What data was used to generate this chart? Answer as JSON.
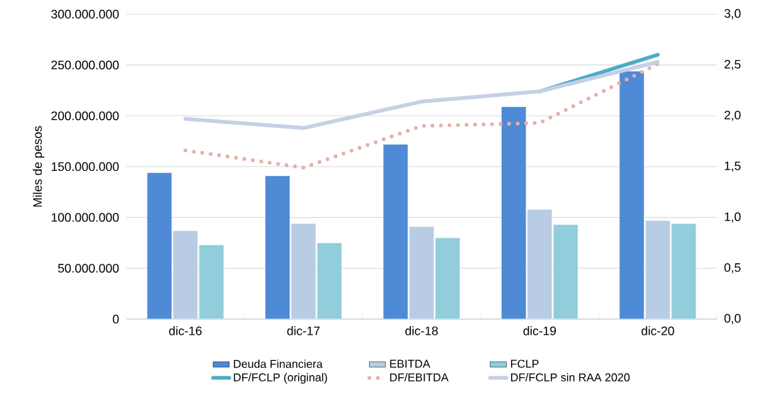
{
  "chart_data": {
    "type": "bar",
    "ylabel": "Miles de pesos",
    "categories": [
      "dic-16",
      "dic-17",
      "dic-18",
      "dic-19",
      "dic-20"
    ],
    "series": [
      {
        "name": "Deuda Financiera",
        "color": "#4e8ad6",
        "values": [
          144000000,
          141000000,
          172000000,
          209000000,
          244000000
        ]
      },
      {
        "name": "EBITDA",
        "color": "#b8cce4",
        "values": [
          87000000,
          94000000,
          91000000,
          108000000,
          97000000
        ]
      },
      {
        "name": "FCLP",
        "color": "#92cddc",
        "values": [
          73000000,
          75000000,
          80000000,
          93000000,
          94000000
        ]
      },
      {
        "name": "DF/FCLP (original)",
        "type": "line",
        "axis": "y2",
        "color": "#4bacc6",
        "line_style": "solid",
        "values": [
          null,
          null,
          null,
          2.24,
          2.6
        ]
      },
      {
        "name": "DF/EBITDA",
        "type": "line",
        "axis": "y2",
        "color": "#e6b0aa",
        "line_style": "dotted",
        "values": [
          1.66,
          1.49,
          1.9,
          1.93,
          2.51
        ]
      },
      {
        "name": "DF/FCLP sin RAA 2020",
        "type": "line",
        "axis": "y2",
        "color": "#c5d0e6",
        "line_style": "solid",
        "values": [
          1.97,
          1.88,
          2.14,
          2.24,
          2.53
        ]
      }
    ],
    "ylim": [
      0,
      300000000
    ],
    "yticks": [
      0,
      {
        "value": 50000000,
        "label": "50.000.000"
      },
      {
        "value": 100000000,
        "label": "100.000.000"
      },
      {
        "value": 150000000,
        "label": "150.000.000"
      },
      {
        "value": 200000000,
        "label": "200.000.000"
      },
      {
        "value": 250000000,
        "label": "250.000.000"
      },
      {
        "value": 300000000,
        "label": "300.000.000"
      }
    ],
    "y2lim": [
      0,
      3
    ],
    "y2ticks": [
      {
        "value": 0,
        "label": "0,0"
      },
      {
        "value": 0.5,
        "label": "0,5"
      },
      {
        "value": 1,
        "label": "1,0"
      },
      {
        "value": 1.5,
        "label": "1,5"
      },
      {
        "value": 2,
        "label": "2,0"
      },
      {
        "value": 2.5,
        "label": "2,5"
      },
      {
        "value": 3,
        "label": "3,0"
      }
    ],
    "grid": "y",
    "legend": "bottom",
    "marker": "none"
  }
}
